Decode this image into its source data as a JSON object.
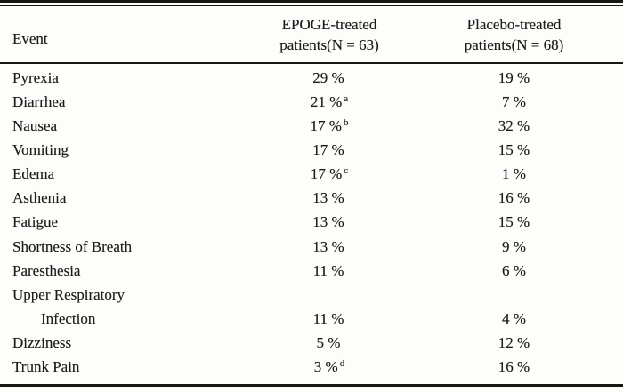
{
  "table": {
    "header": {
      "event_label": "Event",
      "epoge_line1": "EPOGE-treated",
      "epoge_line2": "patients(N = 63)",
      "placebo_line1": "Placebo-treated",
      "placebo_line2": "patients(N = 68)"
    },
    "rows": [
      {
        "event": "Pyrexia",
        "epoge": "29 %",
        "epoge_sup": "",
        "placebo": "19 %",
        "indent": false
      },
      {
        "event": "Diarrhea",
        "epoge": "21 %",
        "epoge_sup": "a",
        "placebo": "7 %",
        "indent": false
      },
      {
        "event": "Nausea",
        "epoge": "17 %",
        "epoge_sup": "b",
        "placebo": "32 %",
        "indent": false
      },
      {
        "event": "Vomiting",
        "epoge": "17 %",
        "epoge_sup": "",
        "placebo": "15 %",
        "indent": false
      },
      {
        "event": "Edema",
        "epoge": "17 %",
        "epoge_sup": "c",
        "placebo": "1 %",
        "indent": false
      },
      {
        "event": "Asthenia",
        "epoge": "13 %",
        "epoge_sup": "",
        "placebo": "16 %",
        "indent": false
      },
      {
        "event": "Fatigue",
        "epoge": "13 %",
        "epoge_sup": "",
        "placebo": "15 %",
        "indent": false
      },
      {
        "event": "Shortness of Breath",
        "epoge": "13 %",
        "epoge_sup": "",
        "placebo": "9 %",
        "indent": false
      },
      {
        "event": "Paresthesia",
        "epoge": "11 %",
        "epoge_sup": "",
        "placebo": "6 %",
        "indent": false
      },
      {
        "event": "Upper Respiratory",
        "epoge": "",
        "epoge_sup": "",
        "placebo": "",
        "indent": false
      },
      {
        "event": "Infection",
        "epoge": "11 %",
        "epoge_sup": "",
        "placebo": "4 %",
        "indent": true
      },
      {
        "event": "Dizziness",
        "epoge": "5 %",
        "epoge_sup": "",
        "placebo": "12 %",
        "indent": false
      },
      {
        "event": "Trunk Pain",
        "epoge": "3 %",
        "epoge_sup": "d",
        "placebo": "16 %",
        "indent": false
      }
    ]
  }
}
